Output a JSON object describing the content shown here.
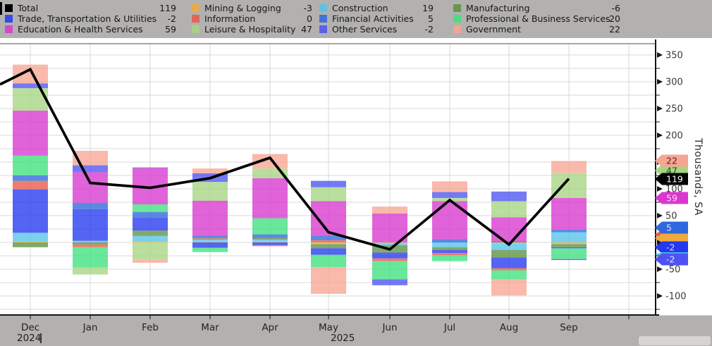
{
  "colors": {
    "page_bg": "#b2b1af",
    "plot_bg": "#ffffff",
    "grid": "#d9d9d9",
    "axis": "#141414",
    "frame_top": "#4f4f4f",
    "tick_label": "#38393b",
    "month_label": "#222222",
    "legend_text": "#171717"
  },
  "legend": {
    "items": [
      {
        "label": "Total",
        "value": "119",
        "color": "#000000",
        "col": 0,
        "row": 0
      },
      {
        "label": "Trade, Transportation & Utilities",
        "value": "-2",
        "color": "#2438ef",
        "col": 0,
        "row": 1
      },
      {
        "label": "Education & Health Services",
        "value": "59",
        "color": "#d937cf",
        "col": 0,
        "row": 2
      },
      {
        "label": "Mining & Logging",
        "value": "-3",
        "color": "#f2a93b",
        "col": 1,
        "row": 0
      },
      {
        "label": "Information",
        "value": "0",
        "color": "#e85948",
        "col": 1,
        "row": 1
      },
      {
        "label": "Leisure & Hospitality",
        "value": "47",
        "color": "#a6d581",
        "col": 1,
        "row": 2
      },
      {
        "label": "Construction",
        "value": "19",
        "color": "#55c3e8",
        "col": 2,
        "row": 0
      },
      {
        "label": "Financial Activities",
        "value": "5",
        "color": "#2d68dd",
        "col": 2,
        "row": 1
      },
      {
        "label": "Other Services",
        "value": "-2",
        "color": "#4d53f2",
        "col": 2,
        "row": 2
      },
      {
        "label": "Manufacturing",
        "value": "-6",
        "color": "#5d9141",
        "col": 3,
        "row": 0
      },
      {
        "label": "Professional & Business Services",
        "value": "-20",
        "color": "#3fe07d",
        "col": 3,
        "row": 1
      },
      {
        "label": "Government",
        "value": "22",
        "color": "#f7a593",
        "col": 3,
        "row": 2
      }
    ]
  },
  "chart_data": {
    "type": "bar",
    "subtype": "stacked-bars-with-total-line",
    "title": "",
    "ylabel": "Thousands, SA",
    "grid": "on",
    "legend_position": "top",
    "ylim": [
      -135,
      371
    ],
    "ytick_labeled": [
      350,
      300,
      250,
      200,
      150,
      100,
      50,
      0,
      -50,
      -100
    ],
    "ytick_minor_step": 25,
    "categories": [
      "Dec",
      "Jan",
      "Feb",
      "Mar",
      "Apr",
      "May",
      "Jun",
      "Jul",
      "Aug",
      "Sep"
    ],
    "years": [
      "2024",
      "2025"
    ],
    "series": [
      {
        "name": "Mining & Logging",
        "color": "#f2a93b",
        "values": [
          2,
          0,
          2,
          1,
          1,
          -3,
          -1,
          0,
          -2,
          -3
        ]
      },
      {
        "name": "Construction",
        "color": "#55c3e8",
        "values": [
          16,
          3,
          10,
          4,
          4,
          0,
          -4,
          -9,
          -12,
          19
        ]
      },
      {
        "name": "Manufacturing",
        "color": "#5d9141",
        "values": [
          -9,
          -4,
          10,
          2,
          3,
          -8,
          -14,
          -5,
          -14,
          -6
        ]
      },
      {
        "name": "Trade, Transportation & Utilities",
        "color": "#2438ef",
        "values": [
          81,
          59,
          24,
          -10,
          -5,
          -12,
          -11,
          -6,
          -20,
          -2
        ]
      },
      {
        "name": "Information",
        "color": "#e85948",
        "values": [
          16,
          -5,
          0,
          1,
          -2,
          4,
          -5,
          -4,
          -4,
          0
        ]
      },
      {
        "name": "Financial Activities",
        "color": "#2d68dd",
        "values": [
          10,
          12,
          11,
          5,
          7,
          9,
          0,
          6,
          2,
          5
        ]
      },
      {
        "name": "Professional & Business Services",
        "color": "#3fe07d",
        "values": [
          37,
          -38,
          14,
          -8,
          30,
          -23,
          -34,
          -11,
          -17,
          -20
        ]
      },
      {
        "name": "Education & Health Services",
        "color": "#d937cf",
        "values": [
          84,
          57,
          68,
          65,
          75,
          64,
          54,
          71,
          45,
          59
        ]
      },
      {
        "name": "Leisure & Hospitality",
        "color": "#a6d581",
        "values": [
          42,
          -13,
          -32,
          35,
          18,
          26,
          0,
          6,
          30,
          47
        ]
      },
      {
        "name": "Other Services",
        "color": "#4d53f2",
        "values": [
          9,
          13,
          1,
          16,
          0,
          12,
          -11,
          11,
          18,
          -2
        ]
      },
      {
        "name": "Government",
        "color": "#f7a593",
        "values": [
          35,
          27,
          -6,
          9,
          27,
          -50,
          13,
          20,
          -30,
          22
        ]
      }
    ],
    "total_line": {
      "name": "Total",
      "color": "#000000",
      "values": [
        323,
        111,
        102,
        120,
        158,
        19,
        -13,
        79,
        -4,
        119
      ],
      "lead_in_value": 295
    },
    "end_labels": [
      {
        "text": "47",
        "color": "#a6d581",
        "text_color": "#2c4a1e",
        "y": 242
      },
      {
        "text": "22",
        "color": "#f7a593",
        "text_color": "#50231a",
        "y": 228
      },
      {
        "text": "119",
        "color": "#000000",
        "text_color": "#ffffff",
        "y": 254
      },
      {
        "text": "59",
        "color": "#d937cf",
        "text_color": "#ffd9f8",
        "y": 281
      },
      {
        "text": "",
        "color": "#e85948",
        "y": 333,
        "h": 14
      },
      {
        "text": "5",
        "color": "#2d68dd",
        "text_color": "#d9e6ff",
        "y": 323
      },
      {
        "text": "",
        "color": "#f2a93b",
        "y": 338,
        "h": 13
      },
      {
        "text": "-2",
        "color": "#2438ef",
        "text_color": "#d6d9ff",
        "y": 351
      },
      {
        "text": "",
        "color": "#55c3e8",
        "y": 361,
        "h": 6
      },
      {
        "text": "-2",
        "color": "#4d53f2",
        "text_color": "#e2e4ff",
        "y": 368
      }
    ]
  }
}
